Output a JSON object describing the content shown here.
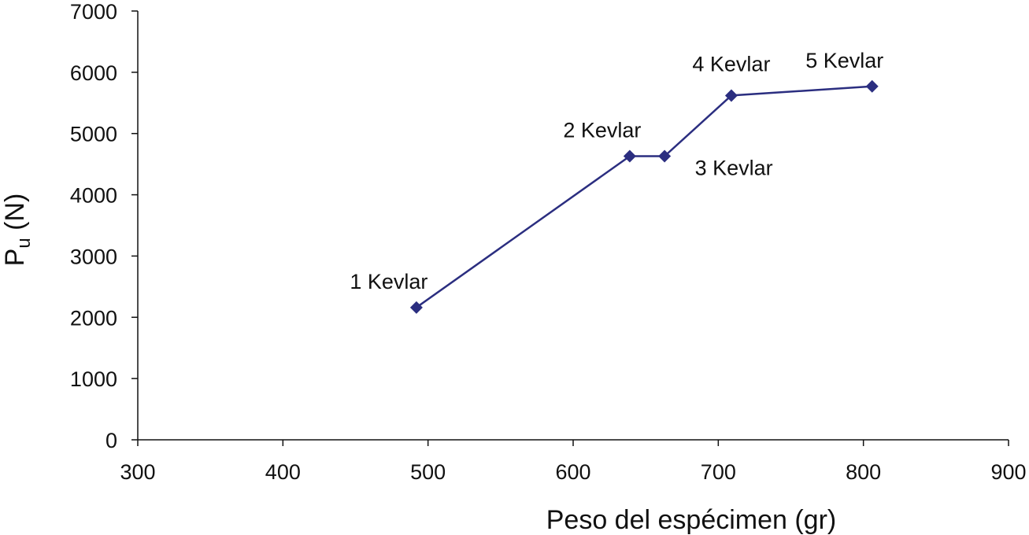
{
  "chart_data": {
    "type": "line",
    "title": "",
    "xlabel": "Peso del espécimen (gr)",
    "ylabel": {
      "main": "P",
      "subscript": "u",
      "suffix": " (N)"
    },
    "xlim": [
      300,
      900
    ],
    "ylim": [
      0,
      7000
    ],
    "xticks": [
      300,
      400,
      500,
      600,
      700,
      800,
      900
    ],
    "yticks": [
      0,
      1000,
      2000,
      3000,
      4000,
      5000,
      6000,
      7000
    ],
    "grid": false,
    "legend": "none",
    "color": "#2b2e80",
    "marker": "diamond",
    "series": [
      {
        "points": [
          {
            "x": 492,
            "y": 2160,
            "label": "1 Kevlar",
            "label_pos": "above-left"
          },
          {
            "x": 639,
            "y": 4630,
            "label": "2 Kevlar",
            "label_pos": "above-left"
          },
          {
            "x": 663,
            "y": 4630,
            "label": "3 Kevlar",
            "label_pos": "below-right"
          },
          {
            "x": 709,
            "y": 5620,
            "label": "4 Kevlar",
            "label_pos": "above"
          },
          {
            "x": 806,
            "y": 5770,
            "label": "5 Kevlar",
            "label_pos": "above-left"
          }
        ]
      }
    ]
  }
}
